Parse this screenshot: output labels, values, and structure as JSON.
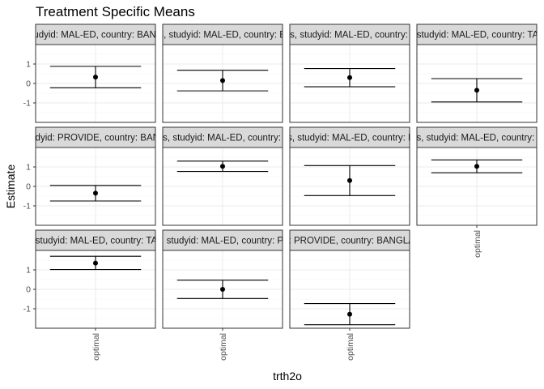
{
  "chart_data": {
    "type": "errorbar",
    "title": "Treatment Specific Means",
    "xlabel": "trth2o",
    "ylabel": "Estimate",
    "ylim": [
      -2.0,
      2.0
    ],
    "yticks": [
      -1,
      0,
      1
    ],
    "grid": true,
    "facet_cols": 4,
    "panels": [
      {
        "strip": "months, studyid: MAL-ED, country: BANGLADESH",
        "category": "optimal",
        "estimate": 0.33,
        "lower": -0.22,
        "upper": 0.88
      },
      {
        "strip": "months, studyid: MAL-ED, country: BRAZIL",
        "category": "optimal",
        "estimate": 0.15,
        "lower": -0.38,
        "upper": 0.68
      },
      {
        "strip": "months, studyid: MAL-ED, country: INDIA",
        "category": "optimal",
        "estimate": 0.3,
        "lower": -0.17,
        "upper": 0.77
      },
      {
        "strip": "months, studyid: MAL-ED, country: TANZANIA",
        "category": "optimal",
        "estimate": -0.35,
        "lower": -0.95,
        "upper": 0.25
      },
      {
        "strip": "months, studyid: PROVIDE, country: BANGLADESH",
        "category": "optimal",
        "estimate": -0.35,
        "lower": -0.75,
        "upper": 0.05
      },
      {
        "strip": "months, studyid: MAL-ED, country: INDIA",
        "category": "optimal",
        "estimate": 1.03,
        "lower": 0.77,
        "upper": 1.3
      },
      {
        "strip": "months, studyid: MAL-ED, country: NEPAL",
        "category": "optimal",
        "estimate": 0.3,
        "lower": -0.47,
        "upper": 1.07
      },
      {
        "strip": "months, studyid: MAL-ED, country: PERU",
        "category": "optimal",
        "estimate": 1.03,
        "lower": 0.7,
        "upper": 1.36
      },
      {
        "strip": "months, studyid: MAL-ED, country: TANZANIA",
        "category": "optimal",
        "estimate": 1.35,
        "lower": 1.02,
        "upper": 1.7
      },
      {
        "strip": "Birth, studyid: MAL-ED, country: PERU",
        "category": "optimal",
        "estimate": 0.0,
        "lower": -0.47,
        "upper": 0.47
      },
      {
        "strip": "studyid: PROVIDE, country: BANGLADESH",
        "category": "optimal",
        "estimate": -1.28,
        "lower": -1.82,
        "upper": -0.73
      }
    ]
  }
}
